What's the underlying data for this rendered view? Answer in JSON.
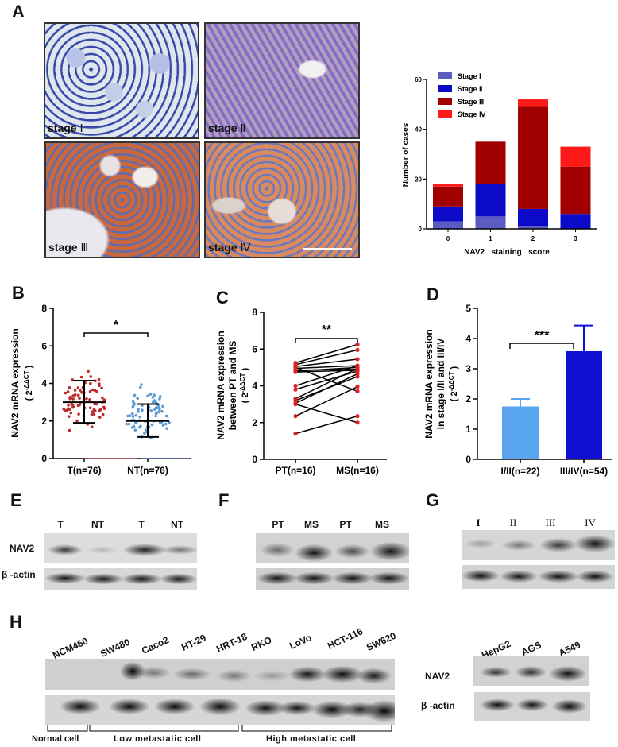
{
  "panels": {
    "A": {
      "label": "A",
      "images": [
        {
          "caption_prefix": "stage",
          "caption_numeral": "Ⅰ"
        },
        {
          "caption_prefix": "stage",
          "caption_numeral": "Ⅱ"
        },
        {
          "caption_prefix": "stage",
          "caption_numeral": "Ⅲ"
        },
        {
          "caption_prefix": "stage",
          "caption_numeral": "Ⅳ"
        }
      ]
    },
    "B": {
      "label": "B",
      "significance": "*"
    },
    "C": {
      "label": "C",
      "significance": "**"
    },
    "D": {
      "label": "D",
      "significance": "***"
    },
    "E": {
      "label": "E",
      "lanes": [
        "T",
        "NT",
        "T",
        "NT"
      ],
      "rows": [
        "NAV2",
        "β -actin"
      ]
    },
    "F": {
      "label": "F",
      "lanes": [
        "PT",
        "MS",
        "PT",
        "MS"
      ]
    },
    "G": {
      "label": "G",
      "lanes": [
        "I",
        "II",
        "III",
        "IV"
      ]
    },
    "H": {
      "label": "H",
      "lanes": [
        "NCM460",
        "SW480",
        "Caco2",
        "HT-29",
        "HRT-18",
        "RKO",
        "LoVo",
        "HCT-116",
        "SW620"
      ],
      "groups": [
        "Normal cell",
        "Low metastatic cell",
        "High metastatic cell"
      ],
      "other_lanes": [
        "HepG2",
        "AGS",
        "A549"
      ],
      "rows": [
        "NAV2",
        "β -actin"
      ]
    }
  },
  "colors": {
    "stage1": "#5b5bc0",
    "stage2": "#0a0ac8",
    "stage3": "#a00000",
    "stage4": "#ff1a1a",
    "T_dots": "#c0282a",
    "NT_dots": "#5b9bd5",
    "C_dots": "#e02020",
    "D_bar1": "#5aa5f0",
    "D_bar2": "#1010d0"
  },
  "chart_data": [
    {
      "panel": "A",
      "type": "bar",
      "stacked": true,
      "title": "",
      "xlabel": "NAV2   staining   score",
      "ylabel": "Number of cases",
      "categories": [
        "0",
        "1",
        "2",
        "3"
      ],
      "ylim": [
        0,
        60
      ],
      "yticks": [
        0,
        20,
        40,
        60
      ],
      "legend_position": "top-left",
      "series": [
        {
          "name": "Stage Ⅰ",
          "values": [
            3,
            5,
            1,
            0
          ]
        },
        {
          "name": "Stage Ⅱ",
          "values": [
            6,
            13,
            7,
            6
          ]
        },
        {
          "name": "Stage Ⅲ",
          "values": [
            8,
            17,
            41,
            19
          ]
        },
        {
          "name": "Stage Ⅳ",
          "values": [
            1,
            0,
            3,
            8
          ]
        }
      ],
      "totals": [
        18,
        35,
        52,
        33
      ]
    },
    {
      "panel": "B",
      "type": "scatter",
      "subtype": "dot plot with mean ± SD",
      "ylabel": "NAV2 mRNA expression",
      "ylabel2": "( 2-ΔΔCT )",
      "categories": [
        "T(n=76)",
        "NT(n=76)"
      ],
      "ylim": [
        0,
        8
      ],
      "yticks": [
        0,
        2,
        4,
        6,
        8
      ],
      "series": [
        {
          "name": "T(n=76)",
          "mean": 3.0,
          "sd_low": 1.9,
          "sd_high": 4.15,
          "min": 1.1,
          "max": 5.3
        },
        {
          "name": "NT(n=76)",
          "mean": 2.0,
          "sd_low": 1.15,
          "sd_high": 2.9,
          "min": 0.7,
          "max": 4.3
        }
      ],
      "annotations": [
        "*"
      ]
    },
    {
      "panel": "C",
      "type": "line",
      "subtype": "paired before-after",
      "ylabel": "NAV2 mRNA expression",
      "ylabel2": "between PT and MS",
      "ylabel3": "( 2-ΔΔCT )",
      "categories": [
        "PT(n=16)",
        "MS(n=16)"
      ],
      "ylim": [
        0,
        8
      ],
      "yticks": [
        0,
        2,
        4,
        6,
        8
      ],
      "pairs": [
        [
          5.25,
          6.25
        ],
        [
          5.15,
          5.95
        ],
        [
          5.05,
          5.45
        ],
        [
          5.0,
          3.7
        ],
        [
          4.95,
          5.1
        ],
        [
          4.85,
          4.9
        ],
        [
          4.8,
          5.0
        ],
        [
          4.75,
          4.85
        ],
        [
          4.0,
          5.1
        ],
        [
          3.8,
          4.8
        ],
        [
          3.3,
          4.95
        ],
        [
          3.2,
          4.5
        ],
        [
          3.05,
          4.65
        ],
        [
          3.0,
          2.0
        ],
        [
          2.35,
          3.95
        ],
        [
          1.4,
          2.35
        ]
      ],
      "annotations": [
        "**"
      ]
    },
    {
      "panel": "D",
      "type": "bar",
      "ylabel": "NAV2 mRNA expression",
      "ylabel2": "in stage I/II and III/IV",
      "ylabel3": "( 2-ΔΔCT )",
      "categories": [
        "I/II(n=22)",
        "III/IV(n=54)"
      ],
      "values": [
        1.75,
        3.58
      ],
      "error_upper": [
        2.0,
        4.43
      ],
      "ylim": [
        0,
        5
      ],
      "yticks": [
        0,
        1,
        2,
        3,
        4,
        5
      ],
      "annotations": [
        "***"
      ]
    }
  ]
}
